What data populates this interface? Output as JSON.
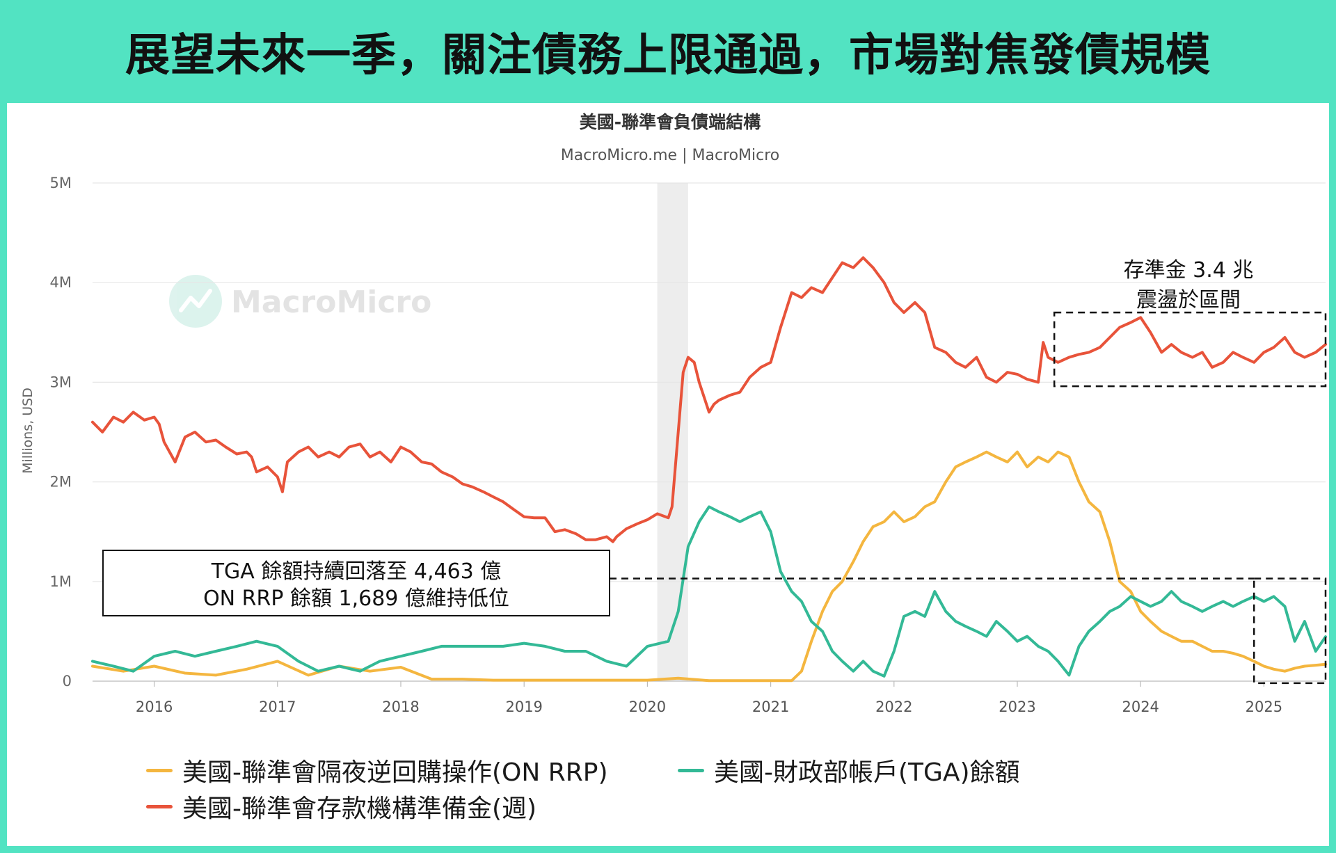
{
  "banner": {
    "title": "展望未來一季，關注債務上限通過，市場對焦發債規模"
  },
  "chart_data": {
    "type": "line",
    "title": "美國-聯準會負債端結構",
    "subtitle": "MacroMicro.me | MacroMicro",
    "watermark": "MacroMicro",
    "ylabel": "Millions, USD",
    "xlim": [
      2015.5,
      2025.5
    ],
    "ylim": [
      0,
      5000000
    ],
    "y_ticks": [
      {
        "value": 0,
        "label": "0"
      },
      {
        "value": 1000000,
        "label": "1M"
      },
      {
        "value": 2000000,
        "label": "2M"
      },
      {
        "value": 3000000,
        "label": "3M"
      },
      {
        "value": 4000000,
        "label": "4M"
      },
      {
        "value": 5000000,
        "label": "5M"
      }
    ],
    "x_ticks": [
      {
        "value": 2016,
        "label": "2016"
      },
      {
        "value": 2017,
        "label": "2017"
      },
      {
        "value": 2018,
        "label": "2018"
      },
      {
        "value": 2019,
        "label": "2019"
      },
      {
        "value": 2020,
        "label": "2020"
      },
      {
        "value": 2021,
        "label": "2021"
      },
      {
        "value": 2022,
        "label": "2022"
      },
      {
        "value": 2023,
        "label": "2023"
      },
      {
        "value": 2024,
        "label": "2024"
      },
      {
        "value": 2025,
        "label": "2025"
      }
    ],
    "grid": true,
    "recession_band": [
      2020.08,
      2020.33
    ],
    "legend_position": "bottom-left",
    "series": [
      {
        "name": "美國-聯準會存款機構準備金(週)",
        "color": "#E8533A",
        "x": [
          2015.5,
          2015.58,
          2015.67,
          2015.75,
          2015.83,
          2015.92,
          2016.0,
          2016.04,
          2016.08,
          2016.17,
          2016.25,
          2016.33,
          2016.42,
          2016.5,
          2016.58,
          2016.67,
          2016.75,
          2016.79,
          2016.83,
          2016.92,
          2017.0,
          2017.04,
          2017.08,
          2017.17,
          2017.25,
          2017.33,
          2017.42,
          2017.5,
          2017.58,
          2017.67,
          2017.75,
          2017.83,
          2017.92,
          2018.0,
          2018.08,
          2018.17,
          2018.25,
          2018.33,
          2018.42,
          2018.5,
          2018.58,
          2018.67,
          2018.75,
          2018.83,
          2018.92,
          2019.0,
          2019.08,
          2019.17,
          2019.25,
          2019.33,
          2019.42,
          2019.5,
          2019.58,
          2019.67,
          2019.72,
          2019.75,
          2019.83,
          2019.92,
          2020.0,
          2020.08,
          2020.17,
          2020.2,
          2020.25,
          2020.29,
          2020.33,
          2020.38,
          2020.42,
          2020.46,
          2020.5,
          2020.54,
          2020.58,
          2020.67,
          2020.75,
          2020.83,
          2020.92,
          2021.0,
          2021.08,
          2021.17,
          2021.25,
          2021.33,
          2021.42,
          2021.5,
          2021.58,
          2021.67,
          2021.75,
          2021.83,
          2021.92,
          2022.0,
          2022.08,
          2022.17,
          2022.25,
          2022.33,
          2022.42,
          2022.5,
          2022.58,
          2022.67,
          2022.75,
          2022.83,
          2022.92,
          2023.0,
          2023.08,
          2023.17,
          2023.21,
          2023.25,
          2023.33,
          2023.42,
          2023.5,
          2023.58,
          2023.67,
          2023.75,
          2023.83,
          2023.92,
          2024.0,
          2024.08,
          2024.17,
          2024.25,
          2024.33,
          2024.42,
          2024.5,
          2024.58,
          2024.67,
          2024.75,
          2024.83,
          2024.92,
          2025.0,
          2025.08,
          2025.17,
          2025.25,
          2025.33,
          2025.42,
          2025.5
        ],
        "y": [
          2600000,
          2500000,
          2650000,
          2600000,
          2700000,
          2620000,
          2650000,
          2580000,
          2400000,
          2200000,
          2450000,
          2500000,
          2400000,
          2420000,
          2350000,
          2280000,
          2300000,
          2250000,
          2100000,
          2150000,
          2050000,
          1900000,
          2200000,
          2300000,
          2350000,
          2250000,
          2300000,
          2250000,
          2350000,
          2380000,
          2250000,
          2300000,
          2200000,
          2350000,
          2300000,
          2200000,
          2180000,
          2100000,
          2050000,
          1980000,
          1950000,
          1900000,
          1850000,
          1800000,
          1720000,
          1650000,
          1640000,
          1640000,
          1500000,
          1520000,
          1480000,
          1420000,
          1420000,
          1450000,
          1400000,
          1450000,
          1530000,
          1580000,
          1620000,
          1680000,
          1640000,
          1750000,
          2500000,
          3100000,
          3250000,
          3200000,
          3000000,
          2850000,
          2700000,
          2780000,
          2820000,
          2870000,
          2900000,
          3050000,
          3150000,
          3200000,
          3550000,
          3900000,
          3850000,
          3950000,
          3900000,
          4050000,
          4200000,
          4150000,
          4250000,
          4150000,
          4000000,
          3800000,
          3700000,
          3800000,
          3700000,
          3350000,
          3300000,
          3200000,
          3150000,
          3250000,
          3050000,
          3000000,
          3100000,
          3080000,
          3030000,
          3000000,
          3400000,
          3250000,
          3200000,
          3250000,
          3280000,
          3300000,
          3350000,
          3450000,
          3550000,
          3600000,
          3650000,
          3500000,
          3300000,
          3380000,
          3300000,
          3250000,
          3300000,
          3150000,
          3200000,
          3300000,
          3250000,
          3200000,
          3300000,
          3350000,
          3450000,
          3300000,
          3250000,
          3300000,
          3380000
        ]
      },
      {
        "name": "美國-聯準會隔夜逆回購操作(ON RRP)",
        "color": "#F4B63F",
        "x": [
          2015.5,
          2015.75,
          2016.0,
          2016.25,
          2016.5,
          2016.75,
          2017.0,
          2017.25,
          2017.5,
          2017.75,
          2018.0,
          2018.25,
          2018.5,
          2018.75,
          2019.0,
          2019.25,
          2019.5,
          2019.75,
          2020.0,
          2020.25,
          2020.5,
          2020.75,
          2021.0,
          2021.17,
          2021.25,
          2021.33,
          2021.42,
          2021.5,
          2021.58,
          2021.67,
          2021.75,
          2021.83,
          2021.92,
          2022.0,
          2022.08,
          2022.17,
          2022.25,
          2022.33,
          2022.42,
          2022.5,
          2022.58,
          2022.67,
          2022.75,
          2022.83,
          2022.92,
          2023.0,
          2023.08,
          2023.17,
          2023.25,
          2023.33,
          2023.42,
          2023.5,
          2023.58,
          2023.67,
          2023.75,
          2023.83,
          2023.92,
          2024.0,
          2024.08,
          2024.17,
          2024.25,
          2024.33,
          2024.42,
          2024.5,
          2024.58,
          2024.67,
          2024.75,
          2024.83,
          2024.92,
          2025.0,
          2025.08,
          2025.17,
          2025.25,
          2025.33,
          2025.42,
          2025.5
        ],
        "y": [
          150000,
          100000,
          150000,
          80000,
          60000,
          120000,
          200000,
          60000,
          150000,
          100000,
          140000,
          20000,
          20000,
          10000,
          10000,
          10000,
          10000,
          10000,
          10000,
          30000,
          5000,
          5000,
          5000,
          5000,
          100000,
          400000,
          700000,
          900000,
          1000000,
          1200000,
          1400000,
          1550000,
          1600000,
          1700000,
          1600000,
          1650000,
          1750000,
          1800000,
          2000000,
          2150000,
          2200000,
          2250000,
          2300000,
          2250000,
          2200000,
          2300000,
          2150000,
          2250000,
          2200000,
          2300000,
          2250000,
          2000000,
          1800000,
          1700000,
          1400000,
          1000000,
          900000,
          700000,
          600000,
          500000,
          450000,
          400000,
          400000,
          350000,
          300000,
          300000,
          280000,
          250000,
          200000,
          150000,
          120000,
          100000,
          130000,
          150000,
          160000,
          170000
        ]
      },
      {
        "name": "美國-財政部帳戶(TGA)餘額",
        "color": "#33B996",
        "x": [
          2015.5,
          2015.67,
          2015.83,
          2016.0,
          2016.17,
          2016.33,
          2016.5,
          2016.67,
          2016.83,
          2017.0,
          2017.17,
          2017.33,
          2017.5,
          2017.67,
          2017.83,
          2018.0,
          2018.17,
          2018.33,
          2018.5,
          2018.67,
          2018.83,
          2019.0,
          2019.17,
          2019.33,
          2019.5,
          2019.67,
          2019.83,
          2020.0,
          2020.17,
          2020.25,
          2020.33,
          2020.42,
          2020.5,
          2020.58,
          2020.67,
          2020.75,
          2020.83,
          2020.92,
          2021.0,
          2021.08,
          2021.17,
          2021.25,
          2021.33,
          2021.42,
          2021.5,
          2021.58,
          2021.67,
          2021.75,
          2021.83,
          2021.92,
          2022.0,
          2022.08,
          2022.17,
          2022.25,
          2022.33,
          2022.42,
          2022.5,
          2022.58,
          2022.67,
          2022.75,
          2022.83,
          2022.92,
          2023.0,
          2023.08,
          2023.17,
          2023.25,
          2023.33,
          2023.42,
          2023.5,
          2023.58,
          2023.67,
          2023.75,
          2023.83,
          2023.92,
          2024.0,
          2024.08,
          2024.17,
          2024.25,
          2024.33,
          2024.42,
          2024.5,
          2024.58,
          2024.67,
          2024.75,
          2024.83,
          2024.92,
          2025.0,
          2025.08,
          2025.17,
          2025.25,
          2025.33,
          2025.42,
          2025.5
        ],
        "y": [
          200000,
          150000,
          100000,
          250000,
          300000,
          250000,
          300000,
          350000,
          400000,
          350000,
          200000,
          100000,
          150000,
          100000,
          200000,
          250000,
          300000,
          350000,
          350000,
          350000,
          350000,
          380000,
          350000,
          300000,
          300000,
          200000,
          150000,
          350000,
          400000,
          700000,
          1350000,
          1600000,
          1750000,
          1700000,
          1650000,
          1600000,
          1650000,
          1700000,
          1500000,
          1100000,
          900000,
          800000,
          600000,
          500000,
          300000,
          200000,
          100000,
          200000,
          100000,
          50000,
          300000,
          650000,
          700000,
          650000,
          900000,
          700000,
          600000,
          550000,
          500000,
          450000,
          600000,
          500000,
          400000,
          450000,
          350000,
          300000,
          200000,
          60000,
          350000,
          500000,
          600000,
          700000,
          750000,
          850000,
          800000,
          750000,
          800000,
          900000,
          800000,
          750000,
          700000,
          750000,
          800000,
          750000,
          800000,
          850000,
          800000,
          850000,
          750000,
          400000,
          600000,
          300000,
          446300
        ]
      }
    ],
    "annotations": [
      {
        "text": "存準金 3.4 兆",
        "text2": "震盪於區間",
        "box": {
          "x0": 2023.3,
          "x1": 2025.5,
          "y0": 2960000,
          "y1": 3700000
        }
      },
      {
        "text": "TGA 餘額持續回落至 4,463 億",
        "text2": "ON RRP 餘額 1,689 億維持低位",
        "line_y": 1030000,
        "line_x1": 2024.92,
        "box": {
          "x0": 2024.92,
          "x1": 2025.5,
          "y0": -20000,
          "y1": 1030000
        }
      }
    ]
  }
}
